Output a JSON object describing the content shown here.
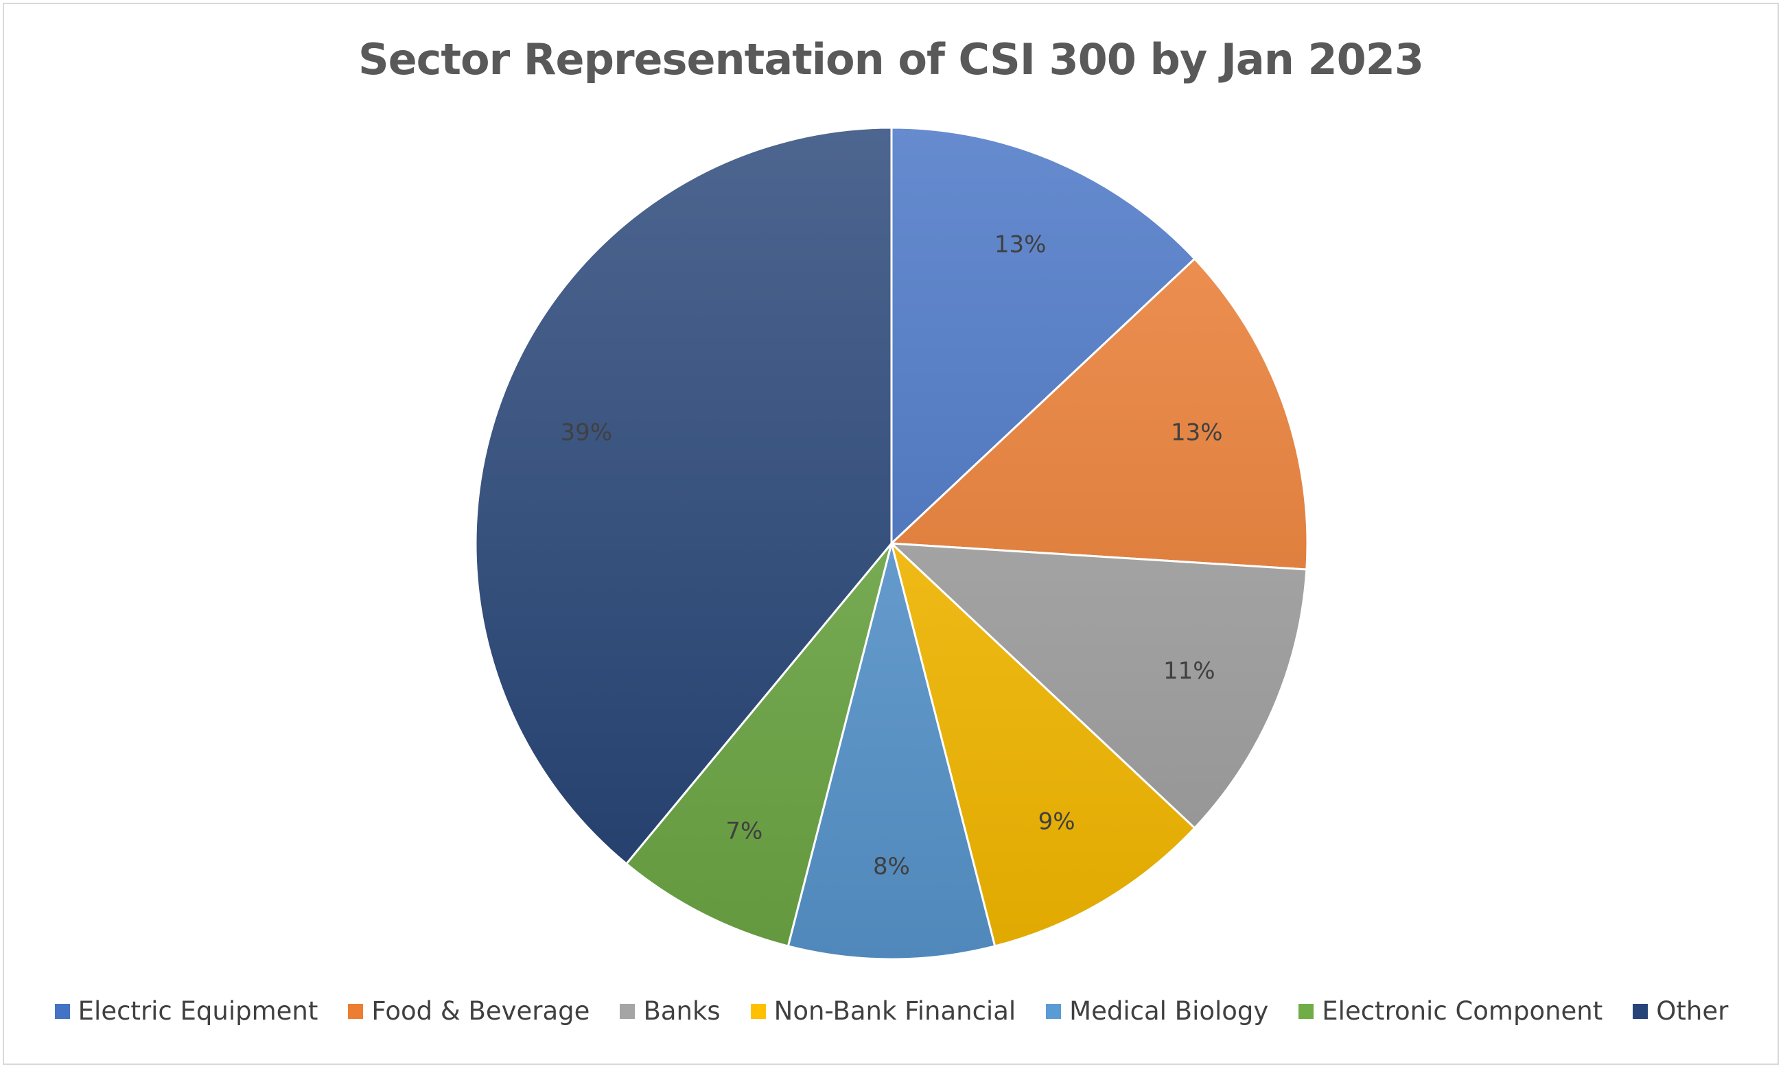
{
  "chart_data": {
    "type": "pie",
    "title": "Sector Representation of CSI 300 by Jan 2023",
    "categories": [
      "Electric Equipment",
      "Food & Beverage",
      "Banks",
      "Non-Bank Financial",
      "Medical Biology",
      "Electronic Component",
      "Other"
    ],
    "values": [
      13,
      13,
      11,
      9,
      8,
      7,
      39
    ],
    "data_labels": [
      "13%",
      "13%",
      "11%",
      "9%",
      "8%",
      "7%",
      "39%"
    ],
    "colors": [
      "#4472c4",
      "#ed7d31",
      "#a5a5a5",
      "#ffc000",
      "#5b9bd5",
      "#70ad47",
      "#264478"
    ],
    "start_angle": "12 o'clock",
    "direction": "clockwise",
    "legend_position": "bottom"
  }
}
